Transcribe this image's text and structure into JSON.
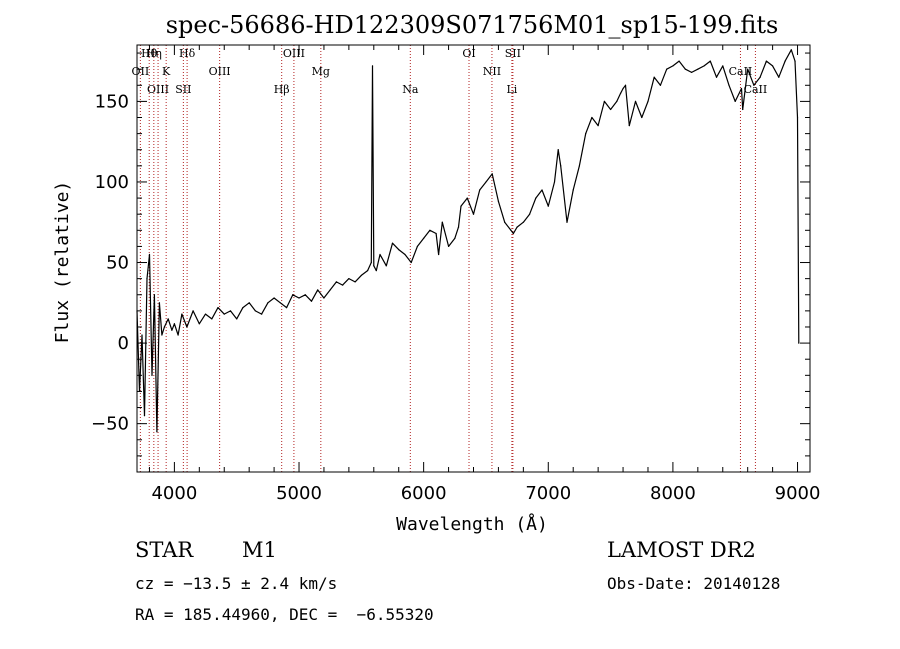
{
  "chart_data": {
    "type": "line",
    "title": "spec-56686-HD122309S071756M01_sp15-199.fits",
    "xlabel": "Wavelength (Å)",
    "ylabel": "Flux (relative)",
    "xlim": [
      3700,
      9100
    ],
    "ylim": [
      -80,
      185
    ],
    "xticks": [
      4000,
      5000,
      6000,
      7000,
      8000,
      9000
    ],
    "yticks": [
      -50,
      0,
      50,
      100,
      150
    ],
    "series": [
      {
        "x": [
          3700,
          3720,
          3740,
          3760,
          3780,
          3800,
          3820,
          3840,
          3860,
          3880,
          3900,
          3920,
          3950,
          3980,
          4000,
          4030,
          4060,
          4100,
          4150,
          4200,
          4250,
          4300,
          4350,
          4400,
          4450,
          4500,
          4550,
          4600,
          4650,
          4700,
          4750,
          4800,
          4850,
          4900,
          4950,
          5000,
          5050,
          5100,
          5150,
          5200,
          5250,
          5300,
          5350,
          5400,
          5450,
          5500,
          5550,
          5580,
          5590,
          5600,
          5620,
          5650,
          5700,
          5750,
          5800,
          5850,
          5900,
          5950,
          6000,
          6050,
          6100,
          6120,
          6150,
          6200,
          6250,
          6280,
          6300,
          6350,
          6400,
          6450,
          6500,
          6550,
          6600,
          6650,
          6700,
          6720,
          6750,
          6800,
          6850,
          6900,
          6950,
          7000,
          7050,
          7080,
          7100,
          7150,
          7200,
          7250,
          7300,
          7350,
          7400,
          7450,
          7500,
          7550,
          7580,
          7600,
          7620,
          7650,
          7700,
          7750,
          7800,
          7850,
          7900,
          7950,
          8000,
          8050,
          8100,
          8150,
          8200,
          8250,
          8300,
          8350,
          8400,
          8450,
          8500,
          8550,
          8560,
          8600,
          8650,
          8700,
          8750,
          8800,
          8850,
          8900,
          8950,
          8980,
          9000,
          9010
        ],
        "y": [
          20,
          -30,
          5,
          -45,
          40,
          55,
          -20,
          30,
          -55,
          25,
          5,
          10,
          15,
          8,
          12,
          5,
          18,
          10,
          20,
          12,
          18,
          15,
          22,
          18,
          20,
          15,
          22,
          25,
          20,
          18,
          25,
          28,
          25,
          22,
          30,
          28,
          30,
          26,
          33,
          28,
          33,
          38,
          36,
          40,
          38,
          42,
          45,
          50,
          172,
          48,
          45,
          55,
          48,
          62,
          58,
          55,
          50,
          60,
          65,
          70,
          68,
          55,
          75,
          60,
          65,
          72,
          85,
          90,
          80,
          95,
          100,
          105,
          88,
          75,
          70,
          68,
          72,
          75,
          80,
          90,
          95,
          85,
          100,
          120,
          110,
          75,
          95,
          110,
          130,
          140,
          135,
          150,
          145,
          150,
          155,
          158,
          160,
          135,
          150,
          140,
          150,
          165,
          160,
          170,
          172,
          175,
          170,
          168,
          170,
          172,
          175,
          165,
          172,
          160,
          150,
          158,
          145,
          170,
          160,
          165,
          175,
          172,
          165,
          175,
          182,
          175,
          140,
          0
        ]
      }
    ],
    "spectral_lines": [
      {
        "label": "Hθ",
        "wl": 3798
      },
      {
        "label": "OII",
        "wl": 3727
      },
      {
        "label": "OIII",
        "wl": 3869
      },
      {
        "label": "Hη",
        "wl": 3835
      },
      {
        "label": "K",
        "wl": 3934
      },
      {
        "label": "SII",
        "wl": 4072
      },
      {
        "label": "Hδ",
        "wl": 4102
      },
      {
        "label": "OIII",
        "wl": 4363
      },
      {
        "label": "Hβ",
        "wl": 4861
      },
      {
        "label": "OIII",
        "wl": 4959
      },
      {
        "label": "Mg",
        "wl": 5175
      },
      {
        "label": "Na",
        "wl": 5893
      },
      {
        "label": "OI",
        "wl": 6364
      },
      {
        "label": "NII",
        "wl": 6548
      },
      {
        "label": "Li",
        "wl": 6708
      },
      {
        "label": "SII",
        "wl": 6716
      },
      {
        "label": "CaII",
        "wl": 8542
      },
      {
        "label": "CaII",
        "wl": 8662
      }
    ],
    "grid": false,
    "legend": "none"
  },
  "info": {
    "object_class": "STAR",
    "subclass": "M1",
    "survey": "LAMOST DR2",
    "redshift": "cz = −13.5 ± 2.4 km/s",
    "obs_date": "Obs-Date: 20140128",
    "coords": "RA = 185.44960, DEC =  −6.55320"
  },
  "colors": {
    "spectrum": "#000000",
    "line_marker": "#b22222",
    "axes": "#000000"
  }
}
